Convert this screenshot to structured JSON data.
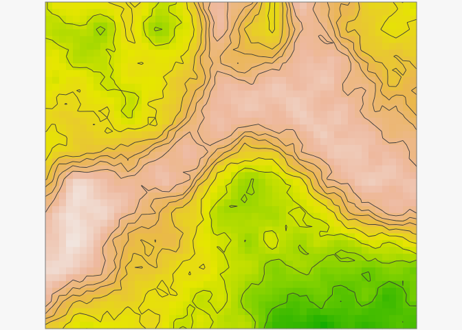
{
  "chart_data": {
    "type": "heatmap",
    "title": "",
    "xlabel": "",
    "ylabel": "",
    "grid": false,
    "legend": "none",
    "contours": true,
    "contour_levels": [
      0.15,
      0.25,
      0.35,
      0.45,
      0.55,
      0.62,
      0.68,
      0.75
    ],
    "value_range": [
      0,
      1
    ],
    "palette": [
      "#00A600",
      "#7ED000",
      "#E6E600",
      "#EAB64E",
      "#EEB99F",
      "#F2F2F2"
    ],
    "matrix": [
      [
        0.35,
        0.45,
        0.4,
        0.5,
        0.3,
        0.45,
        0.85,
        0.7,
        0.45,
        0.85,
        0.65,
        0.55,
        0.45,
        0.4
      ],
      [
        0.35,
        0.3,
        0.25,
        0.45,
        0.25,
        0.35,
        0.8,
        0.55,
        0.4,
        0.8,
        0.7,
        0.5,
        0.45,
        0.45
      ],
      [
        0.4,
        0.35,
        0.3,
        0.45,
        0.4,
        0.5,
        0.7,
        0.6,
        0.7,
        0.8,
        0.85,
        0.65,
        0.5,
        0.55
      ],
      [
        0.4,
        0.45,
        0.4,
        0.35,
        0.45,
        0.55,
        0.8,
        0.85,
        0.85,
        0.85,
        0.8,
        0.75,
        0.6,
        0.6
      ],
      [
        0.45,
        0.5,
        0.45,
        0.35,
        0.45,
        0.65,
        0.85,
        0.8,
        0.8,
        0.85,
        0.85,
        0.8,
        0.7,
        0.65
      ],
      [
        0.4,
        0.5,
        0.55,
        0.6,
        0.7,
        0.85,
        0.7,
        0.5,
        0.55,
        0.75,
        0.85,
        0.85,
        0.8,
        0.75
      ],
      [
        0.55,
        0.9,
        0.85,
        0.75,
        0.85,
        0.75,
        0.4,
        0.25,
        0.3,
        0.45,
        0.75,
        0.85,
        0.85,
        0.8
      ],
      [
        0.75,
        0.95,
        0.9,
        0.8,
        0.6,
        0.5,
        0.3,
        0.25,
        0.3,
        0.35,
        0.45,
        0.7,
        0.8,
        0.8
      ],
      [
        0.85,
        0.95,
        0.8,
        0.55,
        0.6,
        0.5,
        0.35,
        0.3,
        0.35,
        0.3,
        0.3,
        0.35,
        0.4,
        0.45
      ],
      [
        0.9,
        0.9,
        0.75,
        0.55,
        0.5,
        0.45,
        0.4,
        0.3,
        0.25,
        0.25,
        0.2,
        0.2,
        0.2,
        0.2
      ],
      [
        0.85,
        0.55,
        0.55,
        0.45,
        0.45,
        0.35,
        0.35,
        0.25,
        0.15,
        0.15,
        0.15,
        0.15,
        0.1,
        0.15
      ],
      [
        0.5,
        0.4,
        0.35,
        0.45,
        0.4,
        0.35,
        0.35,
        0.3,
        0.1,
        0.05,
        0.05,
        0.1,
        0.1,
        0.15
      ]
    ]
  }
}
